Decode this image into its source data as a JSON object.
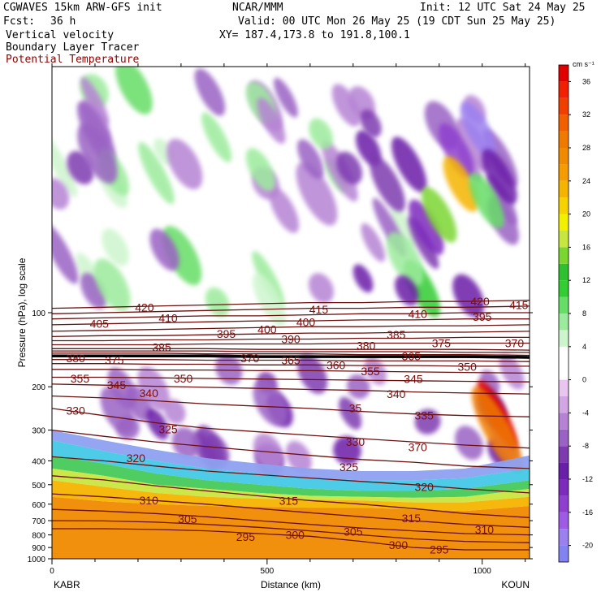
{
  "header": {
    "model": "CGWAVES 15km ARW-GFS init",
    "org": "NCAR/MMM",
    "init": "Init: 12 UTC Sat 24 May 25",
    "fcst_label": "Fcst:",
    "fcst_value": "36 h",
    "valid": "Valid: 00 UTC Mon 26 May 25 (19 CDT Sun 25 May 25)",
    "xy": "XY= 187.4,173.8 to 191.8,100.1",
    "field1": "Vertical velocity",
    "field2": "Boundary Layer Tracer",
    "field3": "Potential Temperature"
  },
  "chart_data": {
    "type": "heatmap",
    "title": "Vertical velocity",
    "xlabel": "Distance (km)",
    "ylabel": "Pressure (hPa), log scale",
    "x_ticks": [
      0,
      500,
      1000
    ],
    "x_range": [
      0,
      1110
    ],
    "x_endpoint_labels": [
      "KABR",
      "KOUN"
    ],
    "y_scale": "log",
    "y_range": [
      1000,
      10
    ],
    "y_ticks": [
      100,
      200,
      300,
      400,
      500,
      600,
      700,
      800,
      900,
      1000
    ],
    "y_tick_labels": [
      "100",
      "200",
      "300",
      "400",
      "500",
      "600",
      "700",
      "800",
      "900",
      "1000"
    ],
    "colorbar": {
      "units": "cm s⁻¹",
      "tick_labels": [
        "-20",
        "-16",
        "-12",
        "-8",
        "-4",
        "0",
        "4",
        "8",
        "12",
        "16",
        "20",
        "24",
        "28",
        "32",
        "36"
      ],
      "ticks": [
        -20,
        -16,
        -12,
        -8,
        -4,
        0,
        4,
        8,
        12,
        16,
        20,
        24,
        28,
        32,
        36
      ],
      "levels": [
        -22,
        -20,
        -18,
        -16,
        -14,
        -12,
        -10,
        -8,
        -6,
        -4,
        -2,
        0,
        2,
        4,
        6,
        8,
        10,
        12,
        14,
        16,
        18,
        20,
        22,
        24,
        26,
        28,
        30,
        32,
        34,
        36,
        38
      ],
      "colors": [
        "#8282f0",
        "#9b80f0",
        "#9e5ce6",
        "#8f3fcf",
        "#7d2bbd",
        "#6a1fa8",
        "#7e3bb0",
        "#9a62c4",
        "#b683d4",
        "#d2a5e3",
        "#e8c6ef",
        "#ffffff",
        "#ffffff",
        "#cdf5cd",
        "#9ceb9c",
        "#66dd66",
        "#33cc33",
        "#2ec02e",
        "#7bd630",
        "#c8e640",
        "#f0f000",
        "#f5d200",
        "#f5b400",
        "#f59c00",
        "#f08a00",
        "#f07a00",
        "#f06000",
        "#f04000",
        "#f02000",
        "#e00000"
      ]
    },
    "theta_isentropes": [
      {
        "label": "295",
        "p": [
          755,
          755,
          760,
          770,
          790,
          810,
          850,
          900,
          920,
          920
        ]
      },
      {
        "label": "300",
        "p": [
          700,
          702,
          710,
          725,
          745,
          770,
          800,
          830,
          850,
          860
        ]
      },
      {
        "label": "305",
        "p": [
          630,
          640,
          655,
          675,
          700,
          725,
          750,
          770,
          790,
          800
        ]
      },
      {
        "label": "310",
        "p": [
          545,
          560,
          580,
          600,
          625,
          650,
          675,
          700,
          725,
          745
        ]
      },
      {
        "label": "315",
        "p": [
          460,
          478,
          505,
          530,
          555,
          580,
          600,
          625,
          655,
          680
        ]
      },
      {
        "label": "320",
        "p": [
          385,
          400,
          420,
          440,
          455,
          470,
          485,
          500,
          520,
          540
        ]
      },
      {
        "label": "325",
        "p": [
          300,
          318,
          335,
          350,
          365,
          380,
          395,
          405,
          420,
          430
        ]
      },
      {
        "label": "330",
        "p": [
          245,
          262,
          280,
          295,
          305,
          315,
          325,
          335,
          345,
          355
        ]
      },
      {
        "label": "335",
        "p": [
          218,
          222,
          228,
          235,
          240,
          245,
          252,
          258,
          262,
          265
        ]
      },
      {
        "label": "340",
        "p": [
          195,
          197,
          199,
          201,
          203,
          205,
          207,
          210,
          212,
          214
        ]
      },
      {
        "label": "345",
        "p": [
          183,
          183,
          184,
          185,
          186,
          187,
          188,
          189,
          190,
          191
        ]
      },
      {
        "label": "350",
        "p": [
          170,
          170,
          171,
          171,
          172,
          172,
          173,
          174,
          175,
          176
        ]
      },
      {
        "label": "355",
        "p": [
          161,
          161,
          162,
          162,
          163,
          163,
          164,
          164,
          165,
          165
        ]
      },
      {
        "label": "360",
        "p": [
          155,
          155,
          155,
          156,
          156,
          156,
          157,
          157,
          157,
          158
        ]
      },
      {
        "label": "365",
        "p": [
          150,
          150,
          150,
          151,
          151,
          151,
          152,
          152,
          152,
          153
        ]
      },
      {
        "label": "370",
        "p": [
          146,
          146,
          146,
          147,
          147,
          147,
          148,
          148,
          148,
          149
        ]
      },
      {
        "label": "375",
        "p": [
          143,
          143,
          143,
          143,
          144,
          144,
          144,
          144,
          145,
          145
        ]
      },
      {
        "label": "380",
        "p": [
          140,
          140,
          140,
          140,
          141,
          141,
          141,
          141,
          141,
          142
        ]
      },
      {
        "label": "385",
        "p": [
          135,
          135,
          135,
          134,
          134,
          134,
          133,
          133,
          133,
          133
        ]
      },
      {
        "label": "390",
        "p": [
          130,
          130,
          129,
          129,
          128,
          128,
          127,
          127,
          126,
          126
        ]
      },
      {
        "label": "395",
        "p": [
          125,
          124,
          124,
          123,
          122,
          121,
          121,
          120,
          120,
          119
        ]
      },
      {
        "label": "400",
        "p": [
          119,
          118,
          117,
          116,
          115,
          114,
          114,
          113,
          113,
          112
        ]
      },
      {
        "label": "405",
        "p": [
          112,
          111,
          110,
          109,
          108,
          108,
          107,
          107,
          106,
          106
        ]
      },
      {
        "label": "410",
        "p": [
          106,
          105,
          104,
          103,
          103,
          102,
          101,
          101,
          100,
          100
        ]
      },
      {
        "label": "415",
        "p": [
          101,
          100,
          99,
          98,
          97,
          96,
          96,
          95,
          95,
          94
        ]
      },
      {
        "label": "420",
        "p": [
          96,
          95,
          94,
          93,
          92,
          91,
          91,
          90,
          90,
          89
        ]
      }
    ],
    "theta_x_km": [
      0,
      120,
      240,
      360,
      480,
      600,
      720,
      840,
      960,
      1110
    ],
    "contour_labels": [
      {
        "text": "420",
        "x": 215,
        "p": 95
      },
      {
        "text": "415",
        "x": 620,
        "p": 97
      },
      {
        "text": "420",
        "x": 995,
        "p": 90
      },
      {
        "text": "415",
        "x": 1085,
        "p": 93
      },
      {
        "text": "410",
        "x": 270,
        "p": 105
      },
      {
        "text": "400",
        "x": 590,
        "p": 109
      },
      {
        "text": "410",
        "x": 850,
        "p": 101
      },
      {
        "text": "395",
        "x": 1000,
        "p": 104
      },
      {
        "text": "405",
        "x": 110,
        "p": 111
      },
      {
        "text": "400",
        "x": 500,
        "p": 117
      },
      {
        "text": "395",
        "x": 405,
        "p": 122
      },
      {
        "text": "385",
        "x": 800,
        "p": 123
      },
      {
        "text": "390",
        "x": 555,
        "p": 128
      },
      {
        "text": "375",
        "x": 905,
        "p": 133
      },
      {
        "text": "370",
        "x": 1075,
        "p": 133
      },
      {
        "text": "385",
        "x": 255,
        "p": 138
      },
      {
        "text": "380",
        "x": 730,
        "p": 136
      },
      {
        "text": "380",
        "x": 55,
        "p": 153
      },
      {
        "text": "375",
        "x": 145,
        "p": 156
      },
      {
        "text": "370",
        "x": 460,
        "p": 153
      },
      {
        "text": "365",
        "x": 555,
        "p": 156
      },
      {
        "text": "365",
        "x": 835,
        "p": 150
      },
      {
        "text": "360",
        "x": 660,
        "p": 163
      },
      {
        "text": "350",
        "x": 965,
        "p": 166
      },
      {
        "text": "355",
        "x": 740,
        "p": 173
      },
      {
        "text": "355",
        "x": 65,
        "p": 185
      },
      {
        "text": "350",
        "x": 305,
        "p": 185
      },
      {
        "text": "345",
        "x": 840,
        "p": 186
      },
      {
        "text": "345",
        "x": 150,
        "p": 197
      },
      {
        "text": "340",
        "x": 225,
        "p": 212
      },
      {
        "text": "340",
        "x": 800,
        "p": 214
      },
      {
        "text": "330",
        "x": 55,
        "p": 250
      },
      {
        "text": "35",
        "x": 705,
        "p": 244
      },
      {
        "text": "335",
        "x": 865,
        "p": 262
      },
      {
        "text": "325",
        "x": 270,
        "p": 298
      },
      {
        "text": "330",
        "x": 705,
        "p": 335
      },
      {
        "text": "370",
        "x": 850,
        "p": 352
      },
      {
        "text": "320",
        "x": 195,
        "p": 390
      },
      {
        "text": "325",
        "x": 690,
        "p": 424
      },
      {
        "text": "320",
        "x": 865,
        "p": 510
      },
      {
        "text": "315",
        "x": 550,
        "p": 580
      },
      {
        "text": "310",
        "x": 225,
        "p": 578
      },
      {
        "text": "305",
        "x": 315,
        "p": 688
      },
      {
        "text": "315",
        "x": 835,
        "p": 683
      },
      {
        "text": "305",
        "x": 700,
        "p": 775
      },
      {
        "text": "310",
        "x": 1005,
        "p": 760
      },
      {
        "text": "295",
        "x": 450,
        "p": 815
      },
      {
        "text": "300",
        "x": 565,
        "p": 800
      },
      {
        "text": "300",
        "x": 805,
        "p": 880
      },
      {
        "text": "295",
        "x": 900,
        "p": 915
      }
    ],
    "tropopause_marker_labels": [
      "380",
      "380",
      "380"
    ],
    "grid": false,
    "legend_placement": "right"
  }
}
